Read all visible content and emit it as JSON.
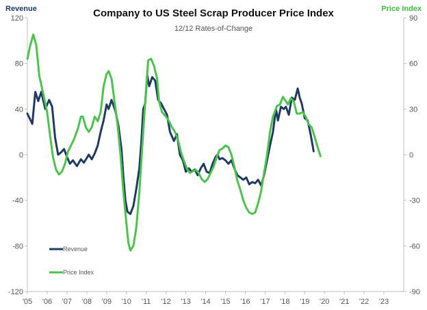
{
  "chart_data": {
    "type": "line",
    "title": "Company to US Steel Scrap Producer Price Index",
    "subtitle": "12/12 Rates-of-Change",
    "left_axis_label": "Revenue",
    "right_axis_label": "Price Index",
    "left_axis": {
      "min": -120,
      "max": 120,
      "ticks": [
        "120",
        "80",
        "40",
        "0",
        "-40",
        "-80",
        "-120"
      ]
    },
    "right_axis": {
      "min": -90,
      "max": 90,
      "ticks": [
        "90",
        "60",
        "30",
        "0",
        "-30",
        "-60",
        "-90"
      ]
    },
    "x_range": [
      2005,
      2024
    ],
    "x_ticks": [
      "'05",
      "'06",
      "'07",
      "'08",
      "'09",
      "'10",
      "'11",
      "'12",
      "'13",
      "'14",
      "'15",
      "'16",
      "'17",
      "'18",
      "'19",
      "'20",
      "'21",
      "'22",
      "'23"
    ],
    "grid": false,
    "legend_position": "bottom-left",
    "colors": {
      "revenue": "#1f3b63",
      "price_index": "#4cc34c",
      "axis": "#bfbfbf"
    },
    "series": [
      {
        "name": "Revenue",
        "axis": "left",
        "color": "#1f3b63",
        "points": [
          [
            2005.0,
            36
          ],
          [
            2005.25,
            27
          ],
          [
            2005.4,
            55
          ],
          [
            2005.55,
            47
          ],
          [
            2005.7,
            55
          ],
          [
            2005.9,
            40
          ],
          [
            2006.1,
            48
          ],
          [
            2006.25,
            42
          ],
          [
            2006.4,
            15
          ],
          [
            2006.55,
            0
          ],
          [
            2006.7,
            2
          ],
          [
            2006.85,
            5
          ],
          [
            2007.0,
            -2
          ],
          [
            2007.15,
            -8
          ],
          [
            2007.3,
            -5
          ],
          [
            2007.5,
            -10
          ],
          [
            2007.7,
            -4
          ],
          [
            2007.85,
            -7
          ],
          [
            2008.0,
            -3
          ],
          [
            2008.1,
            0
          ],
          [
            2008.25,
            -4
          ],
          [
            2008.4,
            1
          ],
          [
            2008.55,
            8
          ],
          [
            2008.7,
            20
          ],
          [
            2008.85,
            30
          ],
          [
            2009.0,
            44
          ],
          [
            2009.1,
            40
          ],
          [
            2009.25,
            48
          ],
          [
            2009.45,
            38
          ],
          [
            2009.6,
            25
          ],
          [
            2009.75,
            5
          ],
          [
            2009.85,
            -20
          ],
          [
            2009.95,
            -40
          ],
          [
            2010.05,
            -50
          ],
          [
            2010.2,
            -52
          ],
          [
            2010.35,
            -45
          ],
          [
            2010.5,
            -30
          ],
          [
            2010.65,
            -12
          ],
          [
            2010.75,
            10
          ],
          [
            2010.85,
            40
          ],
          [
            2010.95,
            45
          ],
          [
            2011.05,
            70
          ],
          [
            2011.15,
            60
          ],
          [
            2011.3,
            68
          ],
          [
            2011.45,
            65
          ],
          [
            2011.6,
            48
          ],
          [
            2011.75,
            45
          ],
          [
            2011.9,
            40
          ],
          [
            2012.05,
            35
          ],
          [
            2012.2,
            20
          ],
          [
            2012.4,
            12
          ],
          [
            2012.55,
            18
          ],
          [
            2012.7,
            0
          ],
          [
            2012.85,
            -5
          ],
          [
            2013.0,
            -15
          ],
          [
            2013.15,
            -12
          ],
          [
            2013.3,
            -15
          ],
          [
            2013.45,
            -13
          ],
          [
            2013.6,
            -18
          ],
          [
            2013.75,
            -12
          ],
          [
            2013.9,
            -8
          ],
          [
            2014.05,
            -15
          ],
          [
            2014.2,
            -16
          ],
          [
            2014.35,
            -8
          ],
          [
            2014.5,
            -2
          ],
          [
            2014.6,
            0
          ],
          [
            2014.7,
            -4
          ],
          [
            2014.85,
            -3
          ],
          [
            2015.0,
            -5
          ],
          [
            2015.15,
            -8
          ],
          [
            2015.3,
            -5
          ],
          [
            2015.45,
            -12
          ],
          [
            2015.6,
            -18
          ],
          [
            2015.75,
            -20
          ],
          [
            2015.9,
            -22
          ],
          [
            2016.05,
            -20
          ],
          [
            2016.2,
            -26
          ],
          [
            2016.35,
            -24
          ],
          [
            2016.5,
            -25
          ],
          [
            2016.65,
            -22
          ],
          [
            2016.8,
            -27
          ],
          [
            2016.95,
            -18
          ],
          [
            2017.1,
            -5
          ],
          [
            2017.25,
            8
          ],
          [
            2017.4,
            20
          ],
          [
            2017.55,
            40
          ],
          [
            2017.65,
            30
          ],
          [
            2017.8,
            42
          ],
          [
            2017.95,
            40
          ],
          [
            2018.05,
            42
          ],
          [
            2018.2,
            35
          ],
          [
            2018.35,
            50
          ],
          [
            2018.5,
            48
          ],
          [
            2018.65,
            58
          ],
          [
            2018.75,
            50
          ],
          [
            2018.85,
            45
          ],
          [
            2019.0,
            32
          ],
          [
            2019.15,
            30
          ],
          [
            2019.3,
            18
          ],
          [
            2019.45,
            3
          ]
        ]
      },
      {
        "name": "Price Index",
        "axis": "right",
        "color": "#4cc34c",
        "points": [
          [
            2005.0,
            63
          ],
          [
            2005.15,
            72
          ],
          [
            2005.3,
            79
          ],
          [
            2005.45,
            72
          ],
          [
            2005.6,
            52
          ],
          [
            2005.8,
            40
          ],
          [
            2006.0,
            28
          ],
          [
            2006.15,
            12
          ],
          [
            2006.3,
            -2
          ],
          [
            2006.45,
            -10
          ],
          [
            2006.6,
            -13
          ],
          [
            2006.75,
            -11
          ],
          [
            2006.9,
            -6
          ],
          [
            2007.05,
            2
          ],
          [
            2007.2,
            6
          ],
          [
            2007.35,
            10
          ],
          [
            2007.55,
            17
          ],
          [
            2007.7,
            25
          ],
          [
            2007.8,
            25
          ],
          [
            2007.95,
            18
          ],
          [
            2008.1,
            15
          ],
          [
            2008.25,
            18
          ],
          [
            2008.4,
            25
          ],
          [
            2008.55,
            22
          ],
          [
            2008.7,
            28
          ],
          [
            2008.85,
            45
          ],
          [
            2009.0,
            53
          ],
          [
            2009.1,
            55
          ],
          [
            2009.25,
            50
          ],
          [
            2009.4,
            35
          ],
          [
            2009.55,
            20
          ],
          [
            2009.7,
            0
          ],
          [
            2009.85,
            -25
          ],
          [
            2010.0,
            -45
          ],
          [
            2010.1,
            -58
          ],
          [
            2010.2,
            -63
          ],
          [
            2010.35,
            -60
          ],
          [
            2010.5,
            -48
          ],
          [
            2010.65,
            -25
          ],
          [
            2010.8,
            5
          ],
          [
            2010.9,
            25
          ],
          [
            2011.0,
            45
          ],
          [
            2011.1,
            62
          ],
          [
            2011.25,
            63
          ],
          [
            2011.4,
            58
          ],
          [
            2011.55,
            50
          ],
          [
            2011.65,
            35
          ],
          [
            2011.8,
            28
          ],
          [
            2012.0,
            25
          ],
          [
            2012.15,
            22
          ],
          [
            2012.3,
            18
          ],
          [
            2012.45,
            15
          ],
          [
            2012.6,
            10
          ],
          [
            2012.75,
            2
          ],
          [
            2012.9,
            -4
          ],
          [
            2013.05,
            -9
          ],
          [
            2013.2,
            -12
          ],
          [
            2013.35,
            -11
          ],
          [
            2013.5,
            -10
          ],
          [
            2013.65,
            -12
          ],
          [
            2013.8,
            -16
          ],
          [
            2013.95,
            -18
          ],
          [
            2014.1,
            -16
          ],
          [
            2014.25,
            -12
          ],
          [
            2014.4,
            -8
          ],
          [
            2014.55,
            -2
          ],
          [
            2014.7,
            3
          ],
          [
            2014.85,
            4
          ],
          [
            2015.0,
            6
          ],
          [
            2015.15,
            5
          ],
          [
            2015.3,
            0
          ],
          [
            2015.45,
            -8
          ],
          [
            2015.6,
            -17
          ],
          [
            2015.75,
            -23
          ],
          [
            2015.9,
            -30
          ],
          [
            2016.05,
            -35
          ],
          [
            2016.2,
            -38
          ],
          [
            2016.35,
            -39
          ],
          [
            2016.5,
            -38
          ],
          [
            2016.65,
            -32
          ],
          [
            2016.8,
            -24
          ],
          [
            2016.95,
            -12
          ],
          [
            2017.1,
            0
          ],
          [
            2017.25,
            15
          ],
          [
            2017.4,
            25
          ],
          [
            2017.6,
            32
          ],
          [
            2017.75,
            33
          ],
          [
            2017.9,
            38
          ],
          [
            2018.05,
            35
          ],
          [
            2018.15,
            33
          ],
          [
            2018.3,
            37
          ],
          [
            2018.45,
            35
          ],
          [
            2018.6,
            27
          ],
          [
            2018.75,
            27
          ],
          [
            2018.9,
            28
          ],
          [
            2019.05,
            25
          ],
          [
            2019.2,
            20
          ],
          [
            2019.35,
            18
          ],
          [
            2019.5,
            12
          ],
          [
            2019.65,
            5
          ],
          [
            2019.8,
            -1
          ]
        ]
      }
    ]
  }
}
